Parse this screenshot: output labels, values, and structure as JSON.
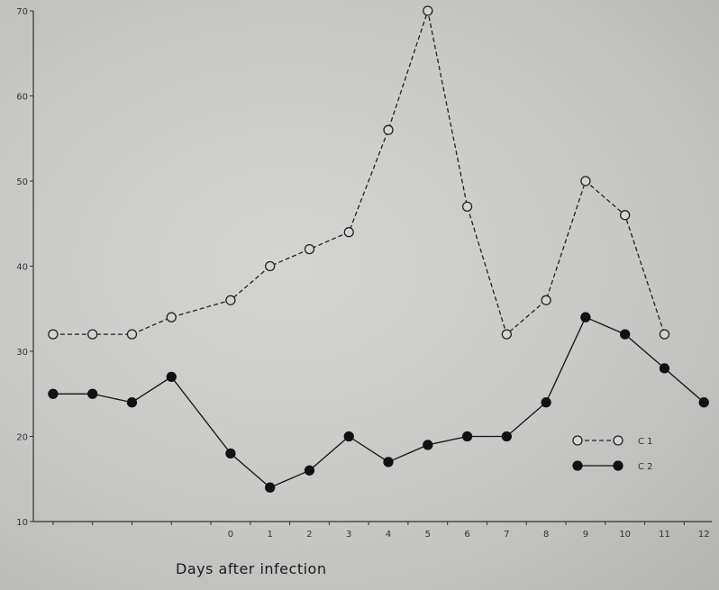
{
  "chart_data": {
    "type": "line",
    "xlabel": "Days after infection",
    "ylabel": "",
    "title": "",
    "x_tick_labels": [
      "0",
      "1",
      "2",
      "3",
      "4",
      "5",
      "6",
      "7",
      "8",
      "9",
      "10",
      "11",
      "12"
    ],
    "y_ticks": [
      10,
      20,
      30,
      40,
      50,
      60,
      70
    ],
    "ylim": [
      10,
      70
    ],
    "xlim": [
      -4.5,
      12.7
    ],
    "grid": false,
    "legend_position": "bottom-right",
    "series": [
      {
        "name": "C 1",
        "style": "dashed-open-circle",
        "color": "#222222",
        "x": [
          -4,
          -3,
          -2,
          -1,
          0.5,
          1.5,
          2.5,
          3.5,
          4.5,
          5.5,
          6.5,
          7.5,
          8.5,
          9.5,
          10.5,
          11.5
        ],
        "y": [
          32,
          32,
          32,
          34,
          36,
          40,
          42,
          44,
          56,
          70,
          47,
          32,
          36,
          50,
          46,
          32
        ]
      },
      {
        "name": "C 2",
        "style": "solid-filled-circle",
        "color": "#111111",
        "x": [
          -4,
          -3,
          -2,
          -1,
          0.5,
          1.5,
          2.5,
          3.5,
          4.5,
          5.5,
          6.5,
          7.5,
          8.5,
          9.5,
          10.5,
          11.5,
          12.5
        ],
        "y": [
          25,
          25,
          24,
          27,
          18,
          14,
          16,
          20,
          17,
          19,
          20,
          20,
          24,
          34,
          32,
          28,
          24
        ]
      }
    ]
  }
}
